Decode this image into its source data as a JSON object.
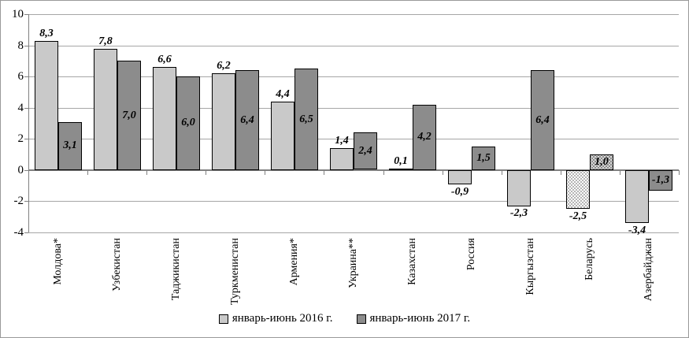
{
  "chart_data": {
    "type": "bar",
    "title": "",
    "categories": [
      "Молдова*",
      "Узбекистан",
      "Таджикистан",
      "Туркменистан",
      "Армения*",
      "Украина**",
      "Казахстан",
      "Россия",
      "Кыргызстан",
      "Беларусь",
      "Азербайджан"
    ],
    "series": [
      {
        "name": "январь-июнь 2016 г.",
        "color": "#c9c9c9",
        "values": [
          8.3,
          7.8,
          6.6,
          6.2,
          4.4,
          1.4,
          0.1,
          -0.9,
          -2.3,
          -2.5,
          -3.4
        ],
        "labels": [
          "8,3",
          "7,8",
          "6,6",
          "6,2",
          "4,4",
          "1,4",
          "0,1",
          "-0,9",
          "-2,3",
          "-2,5",
          "-3,4"
        ]
      },
      {
        "name": "январь-июнь 2017 г.",
        "color": "#8c8c8c",
        "values": [
          3.1,
          7.0,
          6.0,
          6.4,
          6.5,
          2.4,
          4.2,
          1.5,
          6.4,
          1.0,
          -1.3
        ],
        "labels": [
          "3,1",
          "7,0",
          "6,0",
          "6,4",
          "6,5",
          "2,4",
          "4,2",
          "1,5",
          "6,4",
          "1,0",
          "-1,3"
        ]
      }
    ],
    "ylim": [
      -4,
      10
    ],
    "ytick_step": 2,
    "ytick_labels": [
      "10",
      "8",
      "6",
      "4",
      "2",
      "0",
      "-2",
      "-4"
    ],
    "grid": true,
    "legend_position": "bottom",
    "patterned_category_index": 9,
    "patterned_category_note": "dotted fill pattern on Беларусь bars"
  }
}
